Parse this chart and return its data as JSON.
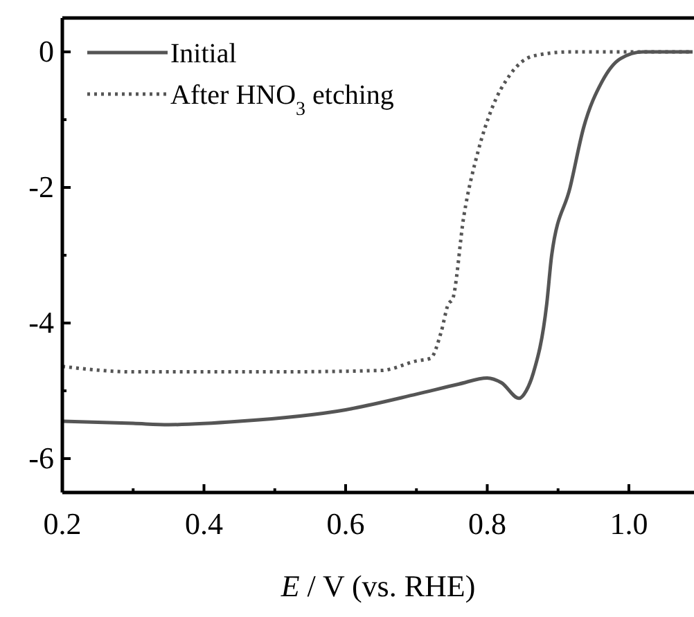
{
  "chart_data": {
    "type": "line",
    "xlabel": "E / V (vs. RHE)",
    "xlim": [
      0.2,
      1.09
    ],
    "ylim": [
      -6.5,
      0.5
    ],
    "xticks": [
      0.2,
      {
        "value": 0.3,
        "label": null
      },
      0.4,
      {
        "value": 0.5,
        "label": null
      },
      0.6,
      {
        "value": 0.7,
        "label": null
      },
      0.8,
      {
        "value": 0.9,
        "label": null
      },
      "1.0"
    ],
    "yticks": [
      {
        "value": -6,
        "label": "-6"
      },
      {
        "value": -5,
        "label": null
      },
      {
        "value": -4,
        "label": "-4"
      },
      {
        "value": -3,
        "label": null
      },
      {
        "value": -2,
        "label": "-2"
      },
      {
        "value": -1,
        "label": null
      },
      0
    ],
    "legend": "top left",
    "grid": false,
    "series": [
      {
        "name": "Initial",
        "color": "#555555",
        "line_style": "solid",
        "x": [
          0.2,
          0.3,
          0.35,
          0.45,
          0.6,
          0.7,
          0.76,
          0.8,
          0.82,
          0.845,
          0.855,
          0.865,
          0.884,
          0.891,
          0.917,
          0.936,
          0.962,
          0.988,
          1.02,
          1.09
        ],
        "values": [
          -5.45,
          -5.48,
          -5.5,
          -5.45,
          -5.28,
          -5.05,
          -4.9,
          -4.81,
          -4.88,
          -5.11,
          -5.0,
          -4.74,
          -3.72,
          -3.0,
          -2.0,
          -1.12,
          -0.44,
          -0.1,
          0,
          0
        ]
      },
      {
        "name": "After HNO$_{3}$ etching",
        "color": "#555555",
        "line_style": "dotted",
        "x": [
          0.2,
          0.3,
          0.5,
          0.65,
          0.7,
          0.72,
          0.735,
          0.745,
          0.751,
          0.767,
          0.787,
          0.806,
          0.832,
          0.865,
          0.917,
          1.09
        ],
        "values": [
          -4.64,
          -4.72,
          -4.72,
          -4.7,
          -4.56,
          -4.52,
          -4.13,
          -3.72,
          -3.65,
          -2.42,
          -1.47,
          -0.85,
          -0.34,
          -0.06,
          0,
          0
        ]
      }
    ]
  }
}
